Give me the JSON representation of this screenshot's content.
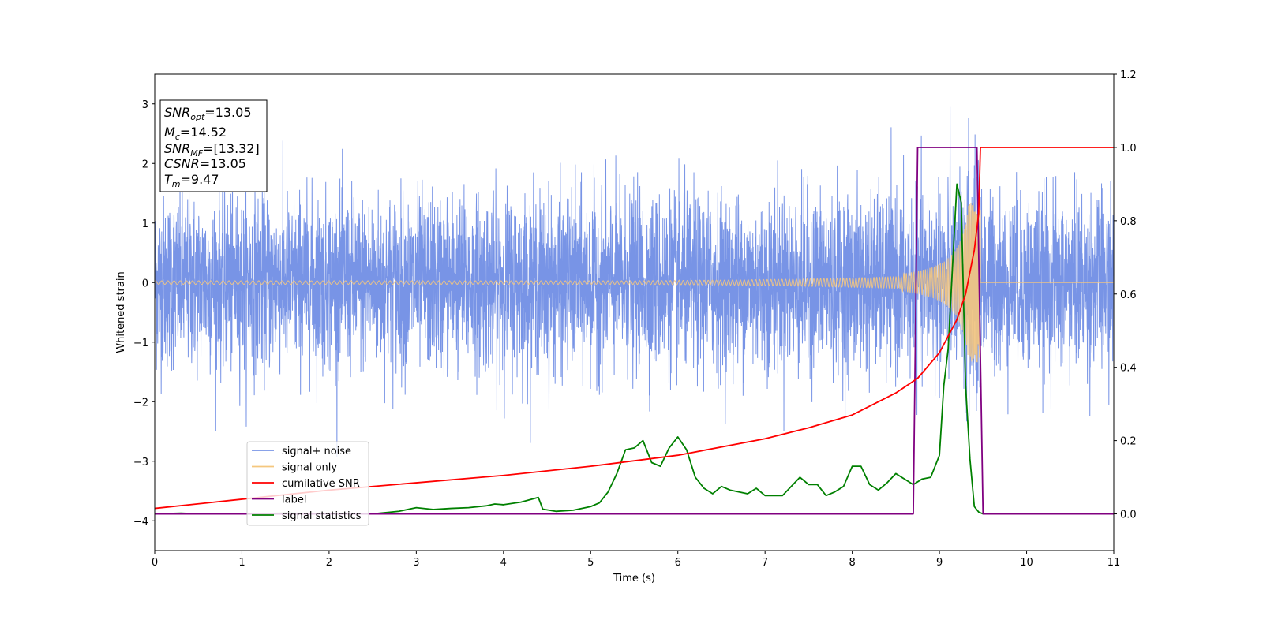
{
  "chart_data": {
    "type": "line",
    "xlabel": "Time (s)",
    "ylabel": "Whitened strain",
    "xlim": [
      0,
      11
    ],
    "ylim": [
      -4.5,
      3.5
    ],
    "ylim_right": [
      -0.1,
      1.2
    ],
    "x_ticks": [
      "0",
      "1",
      "2",
      "3",
      "4",
      "5",
      "6",
      "7",
      "8",
      "9",
      "10",
      "11"
    ],
    "y_ticks": [
      "3",
      "2",
      "1",
      "0",
      "−1",
      "−2",
      "−3",
      "−4"
    ],
    "y_right_ticks": [
      "1.2",
      "1.0",
      "0.8",
      "0.6",
      "0.4",
      "0.2",
      "0.0"
    ],
    "grid": false,
    "legend_position": "lower-left",
    "info_box": {
      "lines": [
        {
          "sym": "SNR",
          "sub": "opt",
          "val": "=13.05"
        },
        {
          "sym": "M",
          "sub": "c",
          "val": "=14.52"
        },
        {
          "sym": "SNR",
          "sub": "MF",
          "val": "=[13.32]"
        },
        {
          "sym": "CSNR",
          "sub": "",
          "val": "=13.05"
        },
        {
          "sym": "T",
          "sub": "m",
          "val": "=9.47"
        }
      ]
    },
    "series": [
      {
        "name": "signal+ noise",
        "color": "#7894e6",
        "axis": "left",
        "kind": "noise",
        "amplitude_std": 0.72,
        "duration": [
          0,
          11
        ]
      },
      {
        "name": "signal only",
        "color": "#f5c77e",
        "axis": "left",
        "kind": "chirp",
        "merger_time": 9.47,
        "peak_amplitude": 1.35
      },
      {
        "name": "cumilative SNR",
        "color": "#ff0000",
        "axis": "right",
        "x": [
          0,
          1,
          2,
          3,
          4,
          5,
          6,
          7,
          7.5,
          8,
          8.5,
          8.75,
          9,
          9.2,
          9.3,
          9.4,
          9.45,
          9.47,
          11
        ],
        "y": [
          0.015,
          0.04,
          0.065,
          0.085,
          0.105,
          0.13,
          0.16,
          0.205,
          0.235,
          0.27,
          0.33,
          0.37,
          0.44,
          0.53,
          0.6,
          0.72,
          0.82,
          1.0,
          1.0
        ]
      },
      {
        "name": "label",
        "color": "#800080",
        "axis": "right",
        "x": [
          0,
          8.7,
          8.75,
          9.43,
          9.5,
          11
        ],
        "y": [
          0,
          0,
          1,
          1,
          0,
          0
        ]
      },
      {
        "name": "signal statistics",
        "color": "#008000",
        "axis": "right",
        "x": [
          0,
          0.3,
          0.5,
          1,
          1.5,
          2,
          2.5,
          2.8,
          3,
          3.2,
          3.4,
          3.6,
          3.8,
          3.9,
          4.0,
          4.2,
          4.4,
          4.45,
          4.6,
          4.8,
          5,
          5.1,
          5.2,
          5.3,
          5.4,
          5.5,
          5.6,
          5.7,
          5.8,
          5.9,
          6.0,
          6.1,
          6.2,
          6.3,
          6.4,
          6.5,
          6.6,
          6.8,
          6.9,
          7.0,
          7.2,
          7.4,
          7.5,
          7.6,
          7.7,
          7.8,
          7.9,
          8.0,
          8.1,
          8.2,
          8.3,
          8.4,
          8.5,
          8.6,
          8.7,
          8.8,
          8.9,
          9.0,
          9.05,
          9.1,
          9.2,
          9.25,
          9.3,
          9.35,
          9.4,
          9.45,
          9.5,
          11
        ],
        "y": [
          0,
          0.002,
          0,
          0,
          0.002,
          0,
          0,
          0.007,
          0.017,
          0.012,
          0.015,
          0.017,
          0.022,
          0.027,
          0.025,
          0.032,
          0.045,
          0.013,
          0.007,
          0.01,
          0.02,
          0.03,
          0.06,
          0.11,
          0.175,
          0.18,
          0.2,
          0.14,
          0.13,
          0.18,
          0.21,
          0.175,
          0.1,
          0.07,
          0.055,
          0.075,
          0.065,
          0.055,
          0.07,
          0.05,
          0.05,
          0.1,
          0.08,
          0.08,
          0.05,
          0.06,
          0.075,
          0.13,
          0.13,
          0.08,
          0.065,
          0.085,
          0.11,
          0.095,
          0.08,
          0.095,
          0.1,
          0.16,
          0.35,
          0.45,
          0.9,
          0.85,
          0.35,
          0.15,
          0.02,
          0.005,
          0,
          0
        ]
      }
    ]
  }
}
